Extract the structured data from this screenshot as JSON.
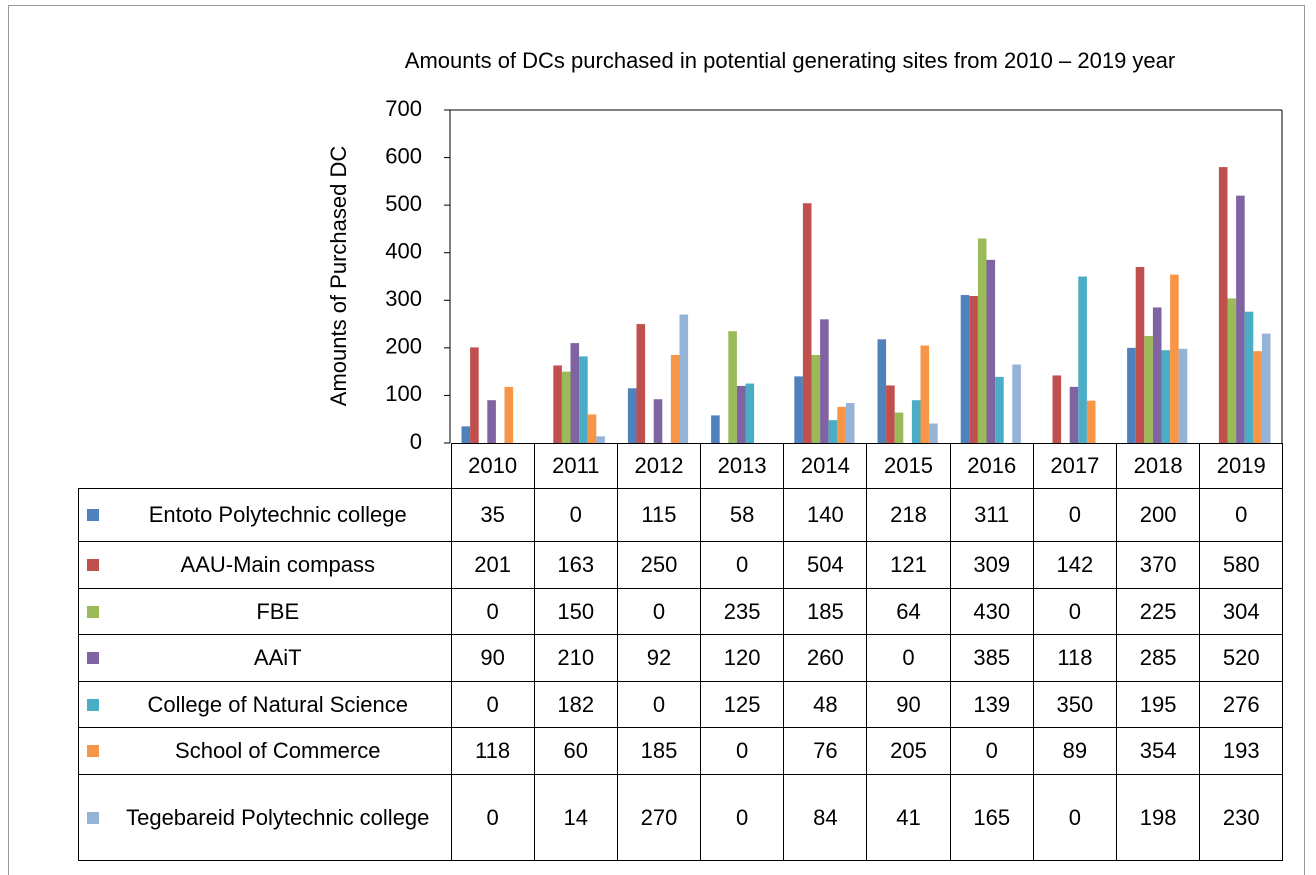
{
  "chart_data": {
    "type": "bar",
    "title": "Amounts of DCs purchased in potential generating sites from 2010 – 2019 year",
    "y_label": "Amounts of Purchased DC",
    "categories": [
      "2010",
      "2011",
      "2012",
      "2013",
      "2014",
      "2015",
      "2016",
      "2017",
      "2018",
      "2019"
    ],
    "series": [
      {
        "name": "Entoto Polytechnic college",
        "color": "#4f81bd",
        "values": [
          35,
          0,
          115,
          58,
          140,
          218,
          311,
          0,
          200,
          0
        ]
      },
      {
        "name": "AAU-Main compass",
        "color": "#c0504d",
        "values": [
          201,
          163,
          250,
          0,
          504,
          121,
          309,
          142,
          370,
          580
        ]
      },
      {
        "name": "FBE",
        "color": "#9bbb59",
        "values": [
          0,
          150,
          0,
          235,
          185,
          64,
          430,
          0,
          225,
          304
        ]
      },
      {
        "name": "AAiT",
        "color": "#8064a2",
        "values": [
          90,
          210,
          92,
          120,
          260,
          0,
          385,
          118,
          285,
          520
        ]
      },
      {
        "name": "College of Natural Science",
        "color": "#4bacc6",
        "values": [
          0,
          182,
          0,
          125,
          48,
          90,
          139,
          350,
          195,
          276
        ]
      },
      {
        "name": "School of Commerce",
        "color": "#f79646",
        "values": [
          118,
          60,
          185,
          0,
          76,
          205,
          0,
          89,
          354,
          193
        ]
      },
      {
        "name": "Tegebareid Polytechnic college",
        "color": "#95b3d7",
        "values": [
          0,
          14,
          270,
          0,
          84,
          41,
          165,
          0,
          198,
          230
        ]
      }
    ],
    "ylim": [
      0,
      700
    ],
    "yticks": [
      0,
      100,
      200,
      300,
      400,
      500,
      600,
      700
    ],
    "grid": false
  }
}
